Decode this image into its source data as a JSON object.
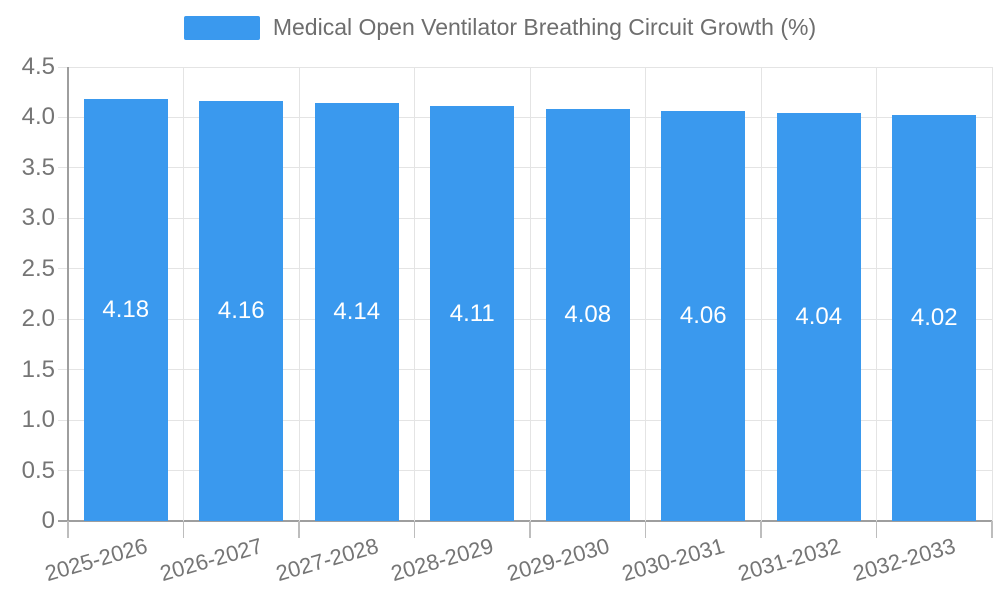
{
  "legend": {
    "label": "Medical Open Ventilator Breathing Circuit Growth (%)",
    "swatch_color": "#3a99ee"
  },
  "chart_data": {
    "type": "bar",
    "title": "",
    "xlabel": "",
    "ylabel": "",
    "categories": [
      "2025-2026",
      "2026-2027",
      "2027-2028",
      "2028-2029",
      "2029-2030",
      "2030-2031",
      "2031-2032",
      "2032-2033"
    ],
    "values": [
      4.18,
      4.16,
      4.14,
      4.11,
      4.08,
      4.06,
      4.04,
      4.02
    ],
    "bar_labels": [
      "4.18",
      "4.16",
      "4.14",
      "4.11",
      "4.08",
      "4.06",
      "4.04",
      "4.02"
    ],
    "series_name": "Medical Open Ventilator Breathing Circuit Growth (%)",
    "ylim": [
      0,
      4.5
    ],
    "yticks": [
      0,
      0.5,
      1.0,
      1.5,
      2.0,
      2.5,
      3.0,
      3.5,
      4.0,
      4.5
    ],
    "ytick_labels": [
      "0",
      "0.5",
      "1.0",
      "1.5",
      "2.0",
      "2.5",
      "3.0",
      "3.5",
      "4.0",
      "4.5"
    ],
    "grid": true,
    "legend_position": "top-center",
    "bar_color": "#3a99ee",
    "bar_label_color": "#ffffff",
    "axis_text_color": "#757575",
    "grid_color": "#e4e4e4",
    "axis_line_color": "#9e9e9e",
    "tick_color": "#bdbdbd",
    "x_tick_rotation_deg": -16
  }
}
